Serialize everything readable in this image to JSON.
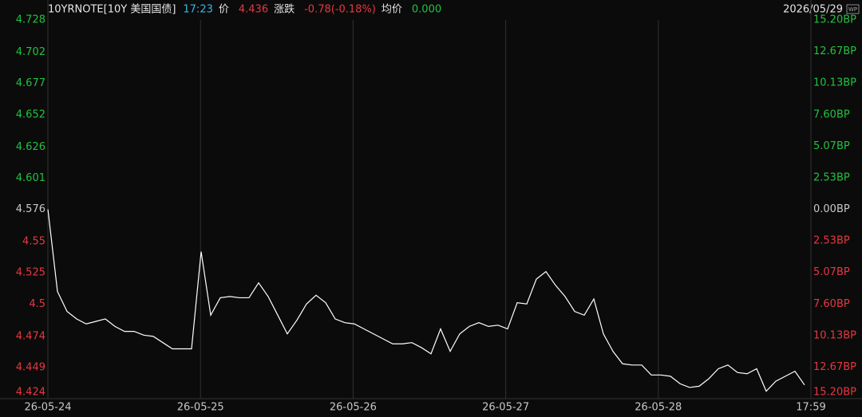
{
  "chart_data": {
    "type": "line",
    "title": "10YRNOTE[10Y 美国国债]",
    "time": "17:23",
    "price_label": "价",
    "price": "4.436",
    "change_label": "涨跌",
    "change": "-0.78(-0.18%)",
    "avg_label": "均价",
    "avg": "0.000",
    "date": "2026/05/29",
    "badge": "WP",
    "x_labels": [
      "26-05-24",
      "26-05-25",
      "26-05-26",
      "26-05-27",
      "26-05-28",
      "17:59"
    ],
    "values": [
      4.576,
      4.51,
      4.494,
      4.488,
      4.484,
      4.486,
      4.488,
      4.482,
      4.478,
      4.478,
      4.475,
      4.474,
      4.469,
      4.464,
      4.464,
      4.464,
      4.542,
      4.491,
      4.505,
      4.506,
      4.505,
      4.505,
      4.517,
      4.506,
      4.491,
      4.476,
      4.487,
      4.5,
      4.507,
      4.501,
      4.488,
      4.485,
      4.484,
      4.48,
      4.476,
      4.472,
      4.468,
      4.468,
      4.469,
      4.465,
      4.46,
      4.48,
      4.462,
      4.476,
      4.482,
      4.485,
      4.482,
      4.483,
      4.48,
      4.501,
      4.5,
      4.52,
      4.526,
      4.515,
      4.506,
      4.494,
      4.491,
      4.504,
      4.476,
      4.462,
      4.452,
      4.451,
      4.451,
      4.443,
      4.443,
      4.442,
      4.436,
      4.433,
      4.434,
      4.44,
      4.448,
      4.451,
      4.445,
      4.444,
      4.448,
      4.43,
      4.438,
      4.442,
      4.446,
      4.435
    ],
    "color": "#ffffff",
    "ylim": [
      4.424,
      4.728
    ],
    "yticks": [
      4.728,
      4.702,
      4.677,
      4.652,
      4.626,
      4.601,
      4.576,
      4.55,
      4.525,
      4.5,
      4.474,
      4.449,
      4.424
    ],
    "y2lim": [
      -15.2,
      15.2
    ],
    "y2ticks": [
      {
        "value": 15.2,
        "label": "15.20BP"
      },
      {
        "value": 12.67,
        "label": "12.67BP"
      },
      {
        "value": 10.13,
        "label": "10.13BP"
      },
      {
        "value": 7.6,
        "label": "7.60BP"
      },
      {
        "value": 5.07,
        "label": "5.07BP"
      },
      {
        "value": 2.53,
        "label": "2.53BP"
      },
      {
        "value": 0,
        "label": "0.00BP"
      },
      {
        "value": -2.53,
        "label": "2.53BP"
      },
      {
        "value": -5.07,
        "label": "5.07BP"
      },
      {
        "value": -7.6,
        "label": "7.60BP"
      },
      {
        "value": -10.13,
        "label": "10.13BP"
      },
      {
        "value": -12.67,
        "label": "12.67BP"
      },
      {
        "value": -15.2,
        "label": "15.20BP"
      }
    ],
    "up_color": "#22c23f",
    "down_color": "#e8373f",
    "flat_color": "#c8c8c8",
    "time_color": "#3bb5e6"
  }
}
